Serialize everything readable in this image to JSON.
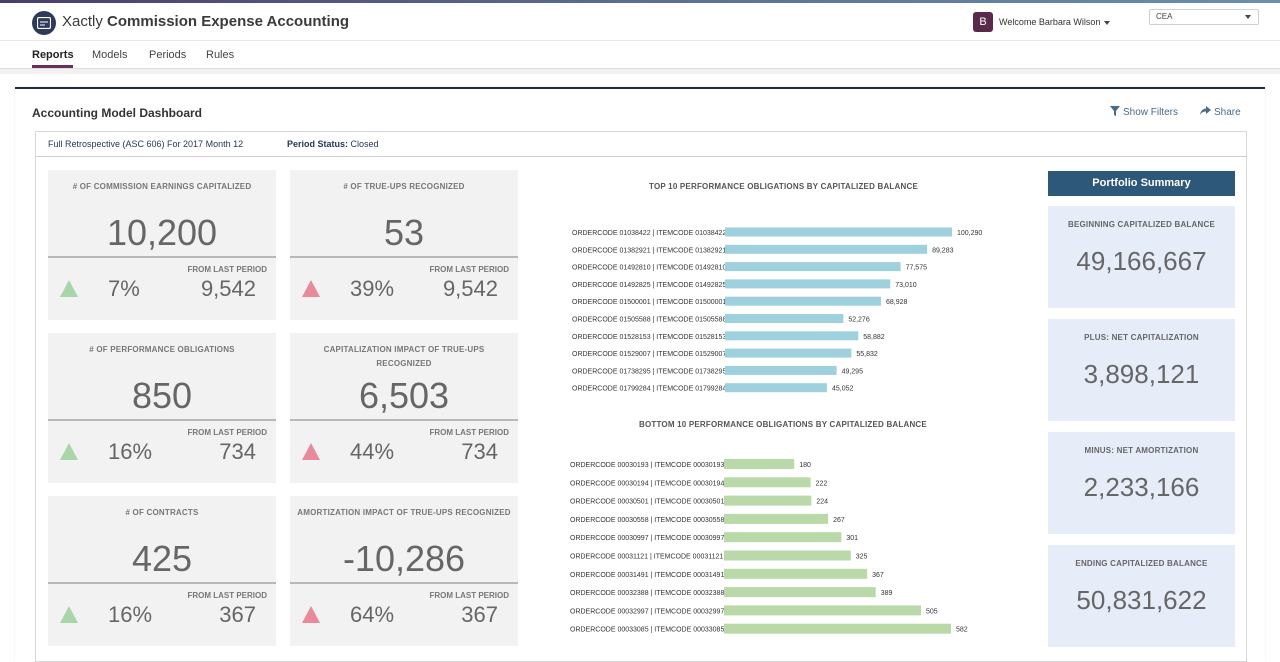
{
  "app": {
    "brand_light": "Xactly",
    "brand_bold": "Commission Expense Accounting",
    "user_initial": "B",
    "welcome": "Welcome Barbara Wilson",
    "instance_select": "CEA"
  },
  "nav": {
    "tabs": [
      {
        "label": "Reports",
        "active": true
      },
      {
        "label": "Models"
      },
      {
        "label": "Periods"
      },
      {
        "label": "Rules"
      }
    ]
  },
  "dashboard": {
    "title": "Accounting Model Dashboard",
    "show_filters": "Show Filters",
    "share": "Share",
    "period": "Full Retrospective (ASC 606) For 2017 Month 12",
    "status_label": "Period Status:",
    "status_value": "Closed"
  },
  "cards": [
    {
      "title": "# OF COMMISSION EARNINGS CAPITALIZED",
      "value": "10,200",
      "change": "7%",
      "direction": "up",
      "from_label": "FROM LAST PERIOD",
      "previous": "9,542"
    },
    {
      "title": "# OF TRUE-UPS RECOGNIZED",
      "value": "53",
      "change": "39%",
      "direction": "up-red",
      "from_label": "FROM LAST PERIOD",
      "previous": "9,542"
    },
    {
      "title": "# OF PERFORMANCE OBLIGATIONS",
      "value": "850",
      "change": "16%",
      "direction": "up",
      "from_label": "FROM LAST PERIOD",
      "previous": "734"
    },
    {
      "title": "CAPITALIZATION IMPACT OF TRUE-UPS RECOGNIZED",
      "value": "6,503",
      "change": "44%",
      "direction": "up-red",
      "from_label": "FROM LAST PERIOD",
      "previous": "734"
    },
    {
      "title": "# OF CONTRACTS",
      "value": "425",
      "change": "16%",
      "direction": "up",
      "from_label": "FROM LAST PERIOD",
      "previous": "367"
    },
    {
      "title": "AMORTIZATION IMPACT OF TRUE-UPS RECOGNIZED",
      "value": "-10,286",
      "change": "64%",
      "direction": "up-red",
      "from_label": "FROM LAST PERIOD",
      "previous": "367"
    }
  ],
  "colors": {
    "top_bar": "#9ed0dd",
    "bottom_bar": "#bad9a8",
    "up_green": "#a9d6a9",
    "up_red": "#e88a99",
    "portfolio_head": "#2e587a"
  },
  "chart_data": [
    {
      "type": "bar",
      "orientation": "horizontal",
      "title": "TOP 10 PERFORMANCE OBLIGATIONS BY CAPITALIZED BALANCE",
      "categories": [
        "ORDERCODE 01038422 | ITEMCODE 01038422",
        "ORDERCODE 01382921 | ITEMCODE 01382921",
        "ORDERCODE 01492810 | ITEMCODE 01492810",
        "ORDERCODE 01492825 | ITEMCODE 01492825",
        "ORDERCODE 01500001 | ITEMCODE 01500001",
        "ORDERCODE 01505588 | ITEMCODE 01505588",
        "ORDERCODE 01528153 | ITEMCODE 01528153",
        "ORDERCODE 01529007 | ITEMCODE 01529007",
        "ORDERCODE 01738295 | ITEMCODE 01738295",
        "ORDERCODE 01799284 | ITEMCODE 01799284"
      ],
      "values": [
        100290,
        89283,
        77575,
        73010,
        68928,
        52276,
        58882,
        55832,
        49295,
        45052
      ],
      "labels": [
        "100,290",
        "89,283",
        "77,575",
        "73,010",
        "68,928",
        "52,276",
        "58,882",
        "55,832",
        "49,295",
        "45,052"
      ],
      "xlim": [
        0,
        100290
      ]
    },
    {
      "type": "bar",
      "orientation": "horizontal",
      "title": "BOTTOM 10 PERFORMANCE OBLIGATIONS BY CAPITALIZED BALANCE",
      "categories": [
        "ORDERCODE 00030193 | ITEMCODE 00030193",
        "ORDERCODE 00030194 | ITEMCODE 00030194",
        "ORDERCODE 00030501 | ITEMCODE 00030501",
        "ORDERCODE 00030558 | ITEMCODE 00030558",
        "ORDERCODE 00030997 | ITEMCODE 00030997",
        "ORDERCODE 00031121 | ITEMCODE 00031121",
        "ORDERCODE 00031491 | ITEMCODE 00031491",
        "ORDERCODE 00032388 | ITEMCODE 00032388",
        "ORDERCODE 00032997 | ITEMCODE 00032997",
        "ORDERCODE 00033085 | ITEMCODE 00033085"
      ],
      "values": [
        180,
        222,
        224,
        267,
        301,
        325,
        367,
        389,
        505,
        582
      ],
      "labels": [
        "180",
        "222",
        "224",
        "267",
        "301",
        "325",
        "367",
        "389",
        "505",
        "582"
      ],
      "xlim": [
        0,
        582
      ]
    }
  ],
  "portfolio": {
    "title": "Portfolio Summary",
    "items": [
      {
        "label": "BEGINNING CAPITALIZED BALANCE",
        "value": "49,166,667"
      },
      {
        "label": "PLUS: NET CAPITALIZATION",
        "value": "3,898,121"
      },
      {
        "label": "MINUS: NET AMORTIZATION",
        "value": "2,233,166"
      },
      {
        "label": "ENDING CAPITALIZED BALANCE",
        "value": "50,831,622"
      }
    ]
  }
}
